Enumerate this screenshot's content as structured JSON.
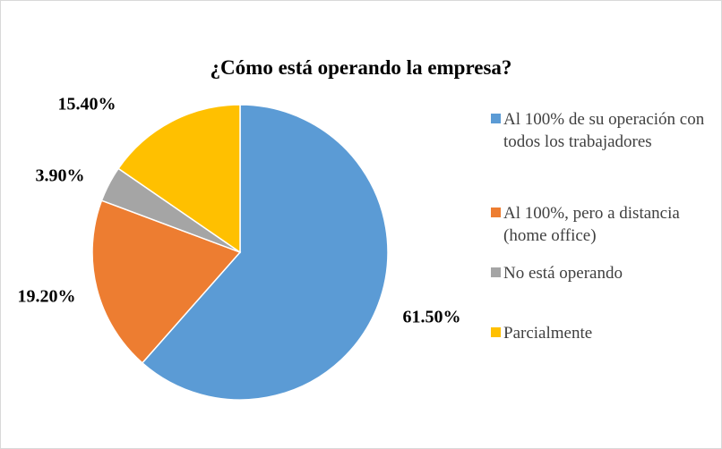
{
  "chart_data": {
    "type": "pie",
    "title": "¿Cómo está operando la empresa?",
    "categories": [
      "Al 100% de su operación con todos los trabajadores",
      "Al 100%, pero a distancia (home office)",
      "No está operando",
      "Parcialmente"
    ],
    "values": [
      61.5,
      19.2,
      3.9,
      15.4
    ],
    "value_labels": [
      "61.50%",
      "19.20%",
      "3.90%",
      "15.40%"
    ],
    "colors": [
      "#5b9bd5",
      "#ed7d31",
      "#a5a5a5",
      "#ffc000"
    ],
    "legend": "right"
  }
}
